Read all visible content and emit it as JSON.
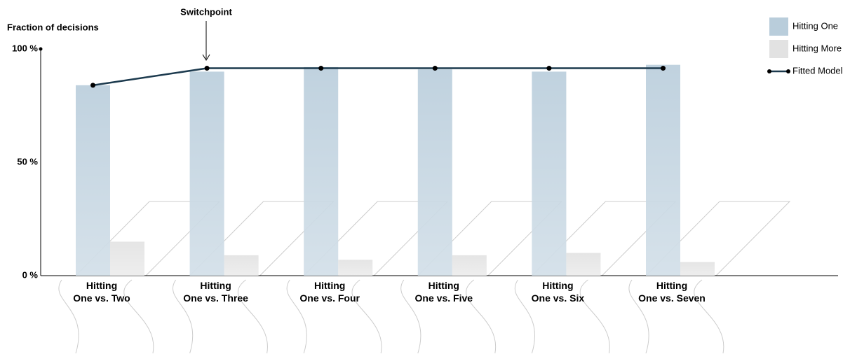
{
  "chart_data": {
    "type": "bar",
    "y_axis_label": "Fraction of decisions",
    "annotation": "Switchpoint",
    "categories": [
      "Hitting\nOne vs. Two",
      "Hitting\nOne vs. Three",
      "Hitting\nOne vs. Four",
      "Hitting\nOne vs. Five",
      "Hitting\nOne vs. Six",
      "Hitting\nOne vs. Seven"
    ],
    "series": [
      {
        "name": "Hitting One",
        "color": "#b9cddb",
        "values": [
          84,
          90,
          92,
          91,
          90,
          93
        ]
      },
      {
        "name": "Hitting More",
        "color": "#e2e2e2",
        "values": [
          15,
          9,
          7,
          9,
          10,
          6
        ]
      },
      {
        "name": "Fitted Model",
        "type": "line",
        "color": "#1c3a4e",
        "values": [
          84,
          91.5,
          91.5,
          91.5,
          91.5,
          91.5
        ]
      }
    ],
    "ylim": [
      0,
      100
    ],
    "yticks": [
      {
        "value": 0,
        "label": "0 %"
      },
      {
        "value": 50,
        "label": "50 %"
      },
      {
        "value": 100,
        "label": "100 %"
      }
    ],
    "legend": "top-right"
  }
}
